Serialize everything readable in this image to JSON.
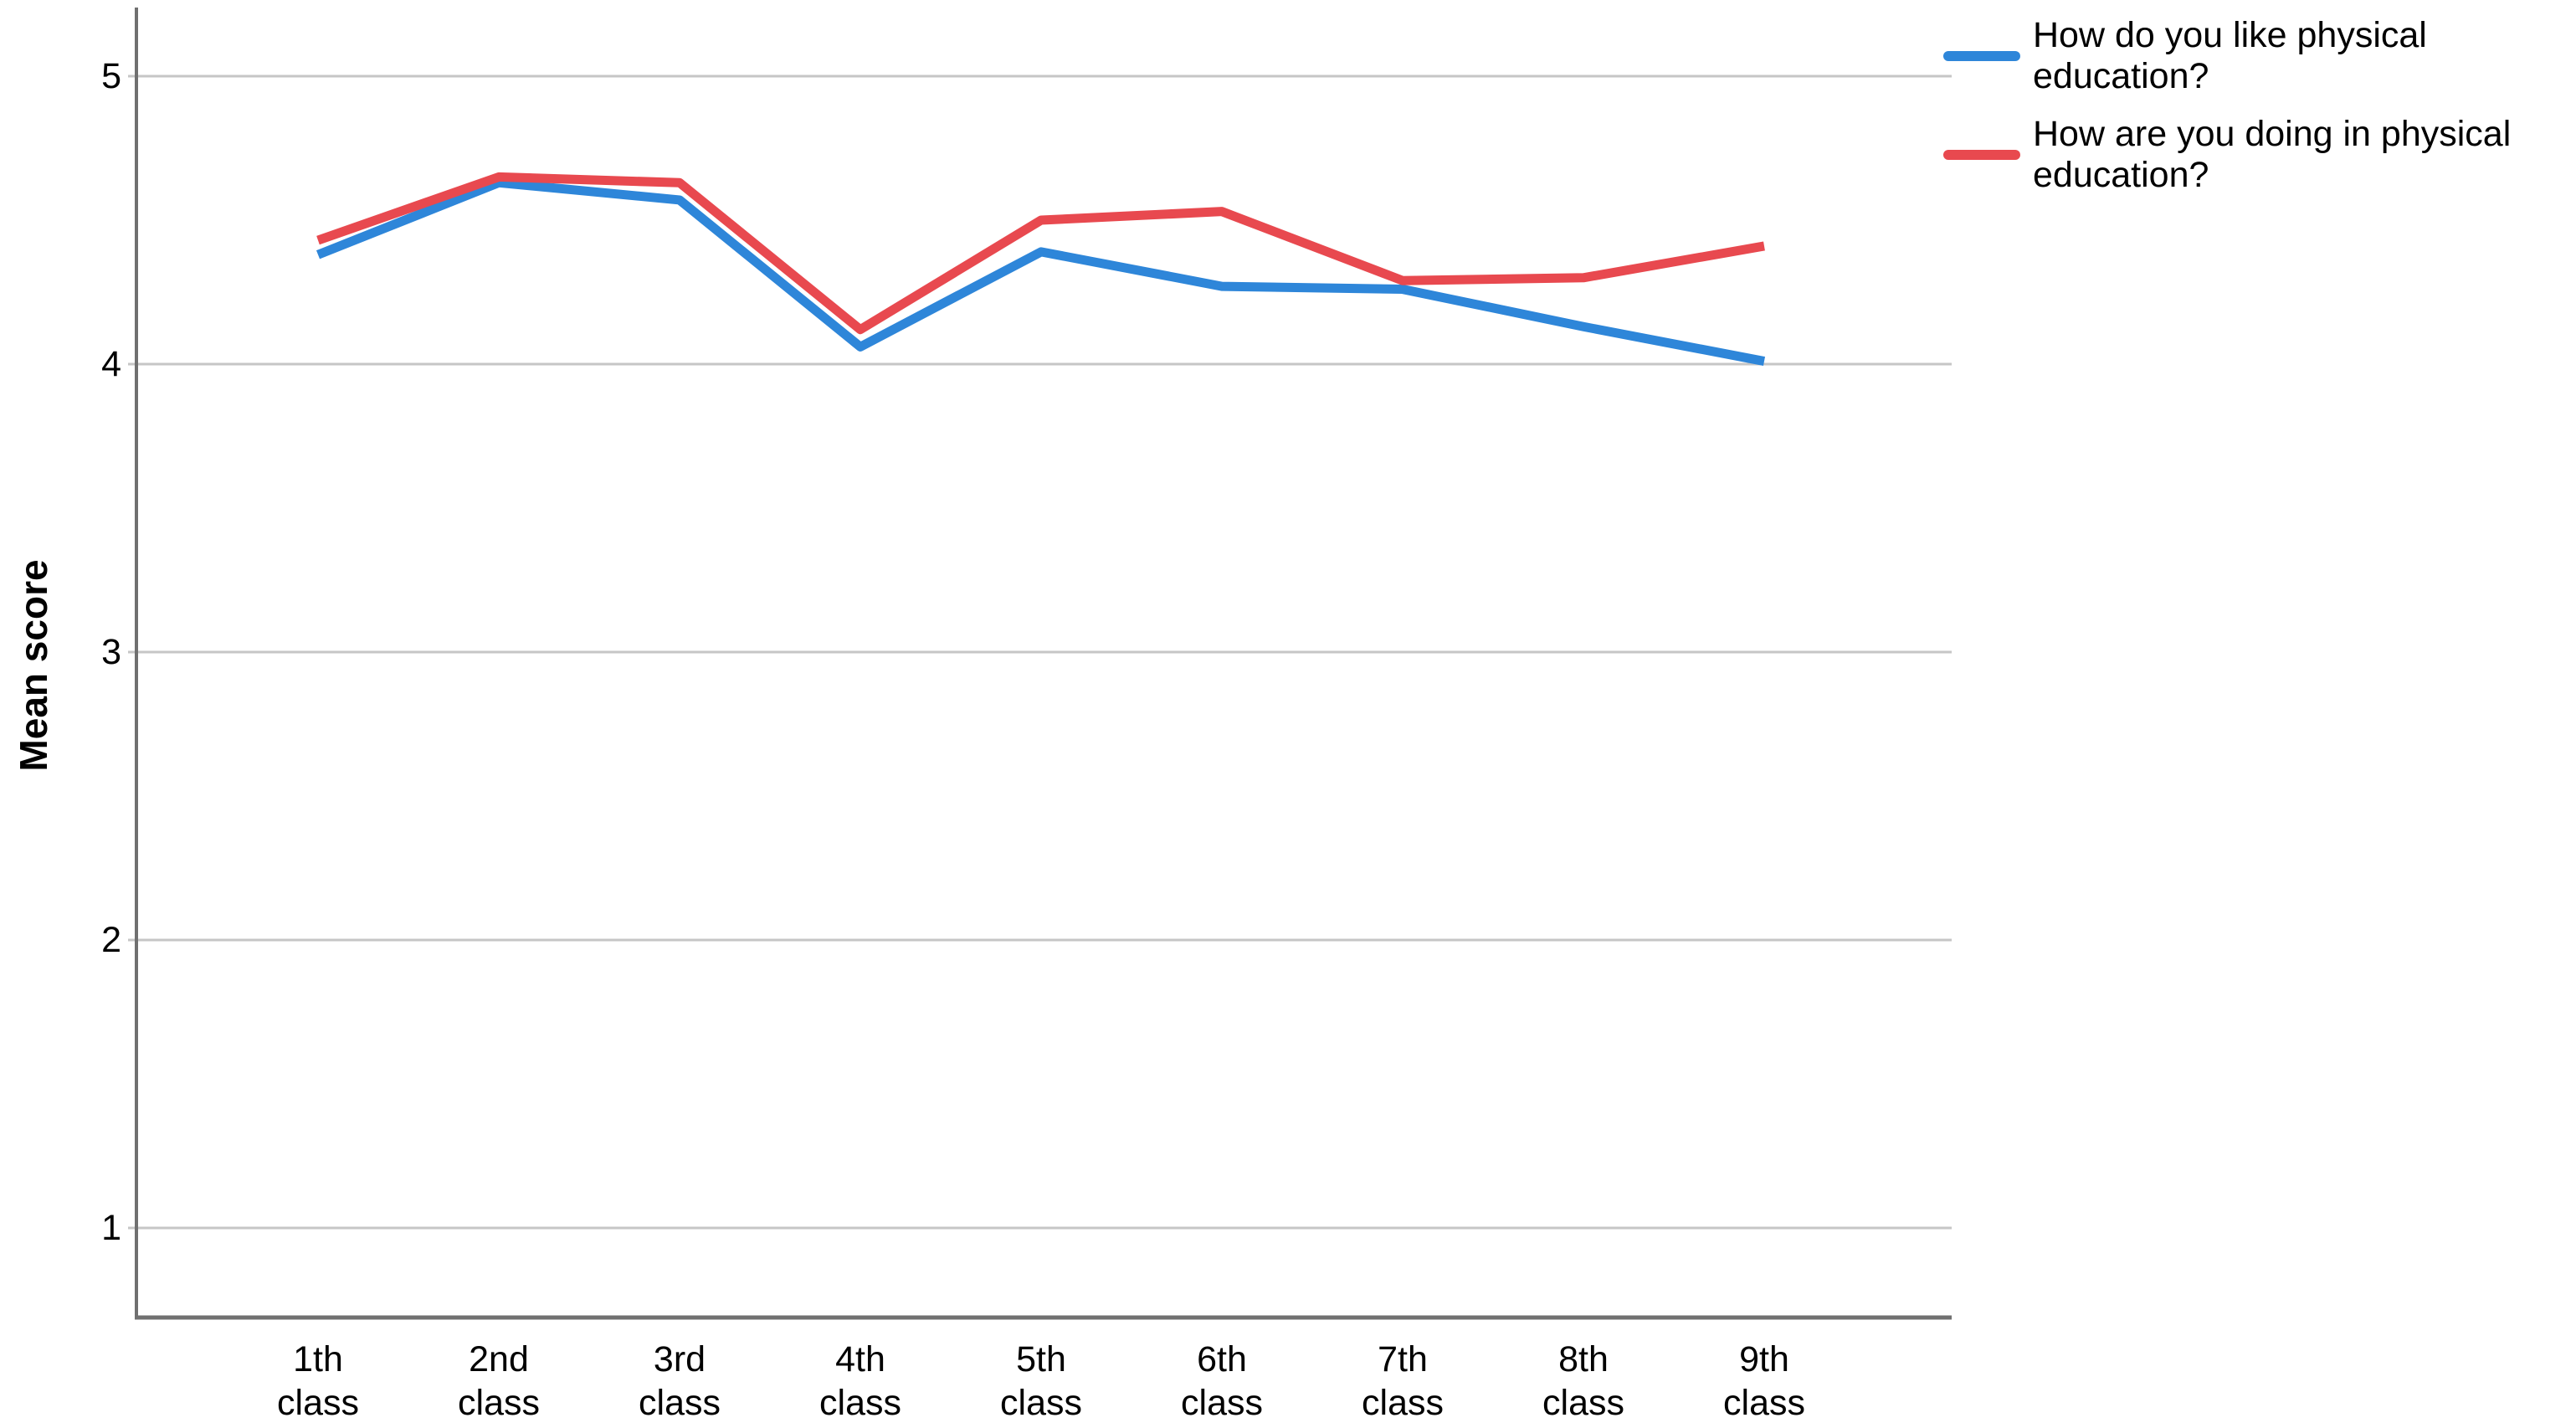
{
  "chart_data": {
    "type": "line",
    "title": "",
    "xlabel": "",
    "ylabel": "Mean score",
    "categories": [
      "1th class",
      "2nd class",
      "3rd class",
      "4th class",
      "5th class",
      "6th class",
      "7th class",
      "8th class",
      "9th class"
    ],
    "series": [
      {
        "name": "How do you like physical education?",
        "color": "#2e86d9",
        "values": [
          4.38,
          4.63,
          4.57,
          4.06,
          4.39,
          4.27,
          4.26,
          4.13,
          4.01
        ]
      },
      {
        "name": "How are you doing in physical education?",
        "color": "#e8494f",
        "values": [
          4.43,
          4.65,
          4.63,
          4.12,
          4.5,
          4.53,
          4.29,
          4.3,
          4.41
        ]
      }
    ],
    "yticks": [
      1,
      2,
      3,
      4,
      5
    ],
    "ylim": [
      0.7,
      5.24
    ],
    "grid": "horizontal",
    "legend_position": "top-right"
  },
  "colors": {
    "grid": "#c6c6c6",
    "axis": "#707070",
    "text": "#000000",
    "background": "#ffffff"
  }
}
